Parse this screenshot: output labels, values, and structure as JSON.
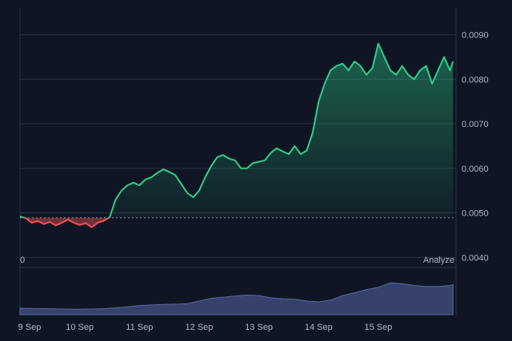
{
  "chart_data": {
    "type": "area",
    "baseline_value": 0.00489,
    "x_ticks": [
      "9 Sep",
      "10 Sep",
      "11 Sep",
      "12 Sep",
      "13 Sep",
      "14 Sep",
      "15 Sep"
    ],
    "price_ticks": [
      "0.0090",
      "0.0080",
      "0.0070",
      "0.0060",
      "0.0050",
      "0.0040"
    ],
    "ylim": [
      0.0039,
      0.0096
    ],
    "xlim": [
      0,
      7.3
    ],
    "price_series": {
      "x": [
        0,
        0.1,
        0.2,
        0.3,
        0.4,
        0.5,
        0.6,
        0.7,
        0.8,
        0.9,
        1.0,
        1.1,
        1.2,
        1.3,
        1.4,
        1.5,
        1.6,
        1.7,
        1.8,
        1.9,
        2.0,
        2.1,
        2.2,
        2.3,
        2.4,
        2.5,
        2.6,
        2.7,
        2.8,
        2.9,
        3.0,
        3.1,
        3.2,
        3.3,
        3.4,
        3.5,
        3.6,
        3.7,
        3.8,
        3.9,
        4.0,
        4.1,
        4.2,
        4.3,
        4.4,
        4.5,
        4.6,
        4.7,
        4.8,
        4.9,
        5.0,
        5.1,
        5.2,
        5.3,
        5.4,
        5.5,
        5.6,
        5.7,
        5.8,
        5.9,
        6.0,
        6.1,
        6.2,
        6.3,
        6.4,
        6.5,
        6.6,
        6.7,
        6.8,
        6.9,
        7.0,
        7.1,
        7.2,
        7.25
      ],
      "values": [
        0.00492,
        0.00488,
        0.00478,
        0.00482,
        0.00475,
        0.0048,
        0.00472,
        0.00478,
        0.00485,
        0.00478,
        0.00473,
        0.00477,
        0.00468,
        0.00478,
        0.00482,
        0.0049,
        0.0053,
        0.0055,
        0.00562,
        0.00568,
        0.00562,
        0.00575,
        0.0058,
        0.0059,
        0.00598,
        0.00592,
        0.00585,
        0.00565,
        0.00545,
        0.00535,
        0.0055,
        0.0058,
        0.00605,
        0.00625,
        0.0063,
        0.00622,
        0.00618,
        0.006,
        0.006,
        0.00612,
        0.00615,
        0.00618,
        0.00635,
        0.00645,
        0.00638,
        0.00632,
        0.0065,
        0.00632,
        0.0064,
        0.0068,
        0.0075,
        0.0079,
        0.0082,
        0.0083,
        0.00835,
        0.0082,
        0.0084,
        0.0083,
        0.0081,
        0.00825,
        0.0088,
        0.0085,
        0.0082,
        0.0081,
        0.0083,
        0.0081,
        0.008,
        0.0082,
        0.0083,
        0.0079,
        0.0082,
        0.0085,
        0.0082,
        0.0084
      ]
    },
    "volume_series": {
      "x": [
        0,
        0.5,
        1.0,
        1.4,
        1.7,
        2.0,
        2.3,
        2.6,
        2.8,
        3.0,
        3.2,
        3.4,
        3.6,
        3.8,
        4.0,
        4.2,
        4.4,
        4.6,
        4.8,
        5.0,
        5.2,
        5.4,
        5.6,
        5.8,
        6.0,
        6.2,
        6.4,
        6.6,
        6.8,
        7.0,
        7.2,
        7.25
      ],
      "values": [
        0.14,
        0.13,
        0.12,
        0.13,
        0.16,
        0.2,
        0.22,
        0.23,
        0.24,
        0.3,
        0.36,
        0.38,
        0.41,
        0.43,
        0.42,
        0.37,
        0.35,
        0.34,
        0.3,
        0.28,
        0.32,
        0.42,
        0.48,
        0.55,
        0.6,
        0.7,
        0.68,
        0.64,
        0.62,
        0.62,
        0.64,
        0.66
      ]
    }
  },
  "labels": {
    "volume_min": "0",
    "analyze": "Analyze"
  },
  "colors": {
    "background": "#0f1523",
    "up_line": "#2fcf8a",
    "down_line": "#f05353",
    "volume": "#3d4a78",
    "grid": "#2a3245",
    "baseline": "#8a93a6"
  }
}
